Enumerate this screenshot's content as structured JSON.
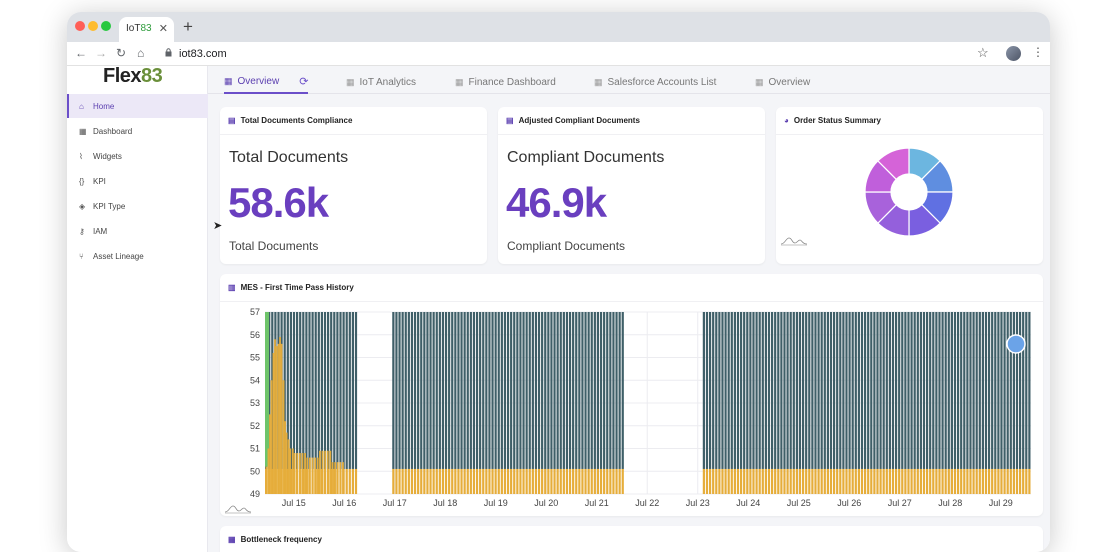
{
  "browser": {
    "tab_title_prefix": "IoT",
    "tab_title_suffix": "83",
    "url": "iot83.com"
  },
  "sidebar": {
    "logo_text": "Flex",
    "logo_num": "83",
    "items": [
      {
        "label": "Home",
        "icon": "home-icon",
        "active": true
      },
      {
        "label": "Dashboard",
        "icon": "grid-icon"
      },
      {
        "label": "Widgets",
        "icon": "chart-line-icon"
      },
      {
        "label": "KPI",
        "icon": "braces-icon"
      },
      {
        "label": "KPI Type",
        "icon": "cubes-icon"
      },
      {
        "label": "IAM",
        "icon": "key-icon"
      },
      {
        "label": "Asset Lineage",
        "icon": "sitemap-icon"
      }
    ]
  },
  "tabs": [
    {
      "label": "Overview",
      "active": true
    },
    {
      "label": "IoT Analytics"
    },
    {
      "label": "Finance Dashboard"
    },
    {
      "label": "Salesforce Accounts List"
    },
    {
      "label": "Overview"
    }
  ],
  "cards": {
    "total_docs": {
      "header": "Total Documents Compliance",
      "title": "Total Documents",
      "value": "58.6k",
      "subtitle": "Total Documents"
    },
    "compliant_docs": {
      "header": "Adjusted Compliant Documents",
      "title": "Compliant Documents",
      "value": "46.9k",
      "subtitle": "Compliant Documents"
    },
    "order_status": {
      "header": "Order Status Summary"
    },
    "mes": {
      "header": "MES - First Time Pass History"
    },
    "bottleneck": {
      "header": "Bottleneck frequency"
    }
  },
  "colors": {
    "accent": "#6b4fc9",
    "kpi_value": "#6a3fbf",
    "bar_dark": "#3f5f68",
    "bar_gold": "#e6ad3a",
    "bar_green": "#6ec46a"
  },
  "chart_data": [
    {
      "type": "pie",
      "title": "",
      "variant": "donut",
      "slices": [
        {
          "value": 1,
          "color": "#6cb6e0"
        },
        {
          "value": 1,
          "color": "#5f8ee0"
        },
        {
          "value": 1,
          "color": "#6070e2"
        },
        {
          "value": 1,
          "color": "#7a5fe0"
        },
        {
          "value": 1,
          "color": "#9460dc"
        },
        {
          "value": 1,
          "color": "#a862db"
        },
        {
          "value": 1,
          "color": "#c05fdb"
        },
        {
          "value": 1,
          "color": "#d563d8"
        }
      ]
    },
    {
      "type": "bar",
      "title": "",
      "ylim": [
        49,
        57
      ],
      "yticks": [
        49,
        50,
        51,
        52,
        53,
        54,
        55,
        56,
        57
      ],
      "xtick_labels": [
        "Jul 15",
        "Jul 16",
        "Jul 17",
        "Jul 18",
        "Jul 19",
        "Jul 20",
        "Jul 21",
        "Jul 22",
        "Jul 23",
        "Jul 24",
        "Jul 25",
        "Jul 26",
        "Jul 27",
        "Jul 28",
        "Jul 29"
      ],
      "day_index_of_ticks": [
        0,
        1,
        2,
        3,
        4,
        5,
        6,
        7,
        8,
        9,
        10,
        11,
        12,
        13,
        14
      ],
      "x_range_days": [
        -0.57,
        14.6
      ],
      "segments": [
        {
          "start_day": -0.57,
          "end_day": 1.24,
          "series": [
            {
              "name": "",
              "color": "#3f5f68",
              "value": 57
            },
            {
              "name": "",
              "color": "#e6ad3a",
              "value": 50.1
            }
          ],
          "early_peak": [
            [
              -0.56,
              50.2
            ],
            [
              -0.52,
              51.0
            ],
            [
              -0.49,
              52.5
            ],
            [
              -0.46,
              54.0
            ],
            [
              -0.42,
              55.2
            ],
            [
              -0.39,
              55.8
            ],
            [
              -0.36,
              55.5
            ],
            [
              -0.32,
              55.6
            ],
            [
              -0.29,
              55.9
            ],
            [
              -0.26,
              55.6
            ],
            [
              -0.22,
              54.0
            ],
            [
              -0.19,
              52.2
            ],
            [
              -0.16,
              51.7
            ],
            [
              -0.12,
              51.4
            ],
            [
              -0.09,
              51.0
            ],
            [
              0.0,
              50.8
            ],
            [
              0.25,
              50.6
            ],
            [
              0.5,
              50.9
            ],
            [
              0.75,
              50.4
            ],
            [
              1.0,
              50.2
            ]
          ]
        },
        {
          "start_day": 1.95,
          "end_day": 6.55,
          "series": [
            {
              "name": "",
              "color": "#3f5f68",
              "value": 57
            },
            {
              "name": "",
              "color": "#e6ad3a",
              "value": 50.1
            }
          ]
        },
        {
          "start_day": 8.1,
          "end_day": 14.6,
          "series": [
            {
              "name": "",
              "color": "#3f5f68",
              "value": 57
            },
            {
              "name": "",
              "color": "#e6ad3a",
              "value": 50.1
            }
          ]
        }
      ]
    }
  ]
}
